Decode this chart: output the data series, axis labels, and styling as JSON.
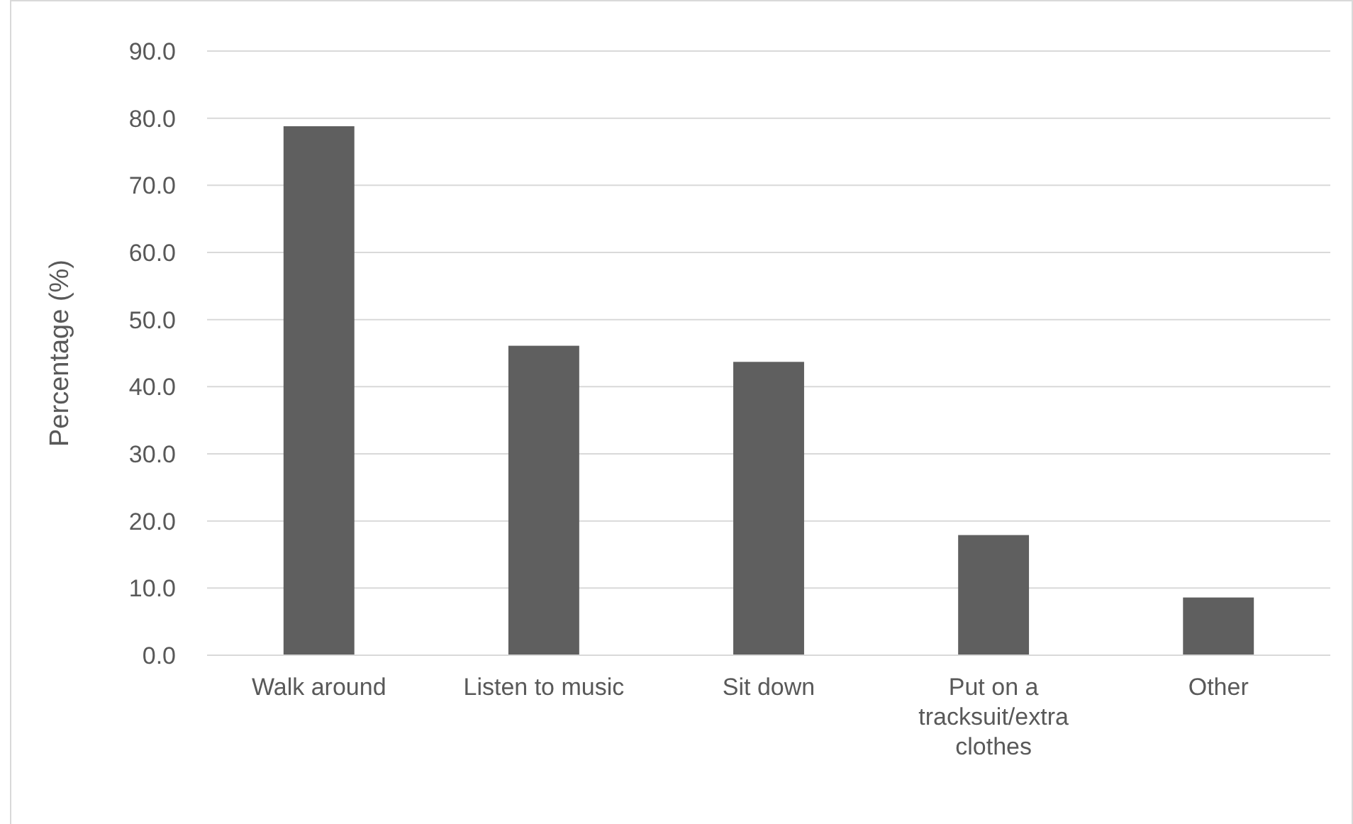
{
  "chart_data": {
    "type": "bar",
    "ylabel": "Percentage (%)",
    "categories": [
      "Walk around",
      "Listen to music",
      "Sit down",
      "Put on a tracksuit/extra clothes",
      "Other"
    ],
    "values": [
      78.8,
      46.1,
      43.7,
      17.9,
      8.6
    ],
    "color": "#5f5f5f",
    "ylim": [
      0,
      90
    ],
    "yticks": [
      {
        "value": 0,
        "label": "0.0"
      },
      {
        "value": 10,
        "label": "10.0"
      },
      {
        "value": 20,
        "label": "20.0"
      },
      {
        "value": 30,
        "label": "30.0"
      },
      {
        "value": 40,
        "label": "40.0"
      },
      {
        "value": 50,
        "label": "50.0"
      },
      {
        "value": 60,
        "label": "60.0"
      },
      {
        "value": 70,
        "label": "70.0"
      },
      {
        "value": 80,
        "label": "80.0"
      },
      {
        "value": 90,
        "label": "90.0"
      }
    ],
    "grid": "y"
  }
}
